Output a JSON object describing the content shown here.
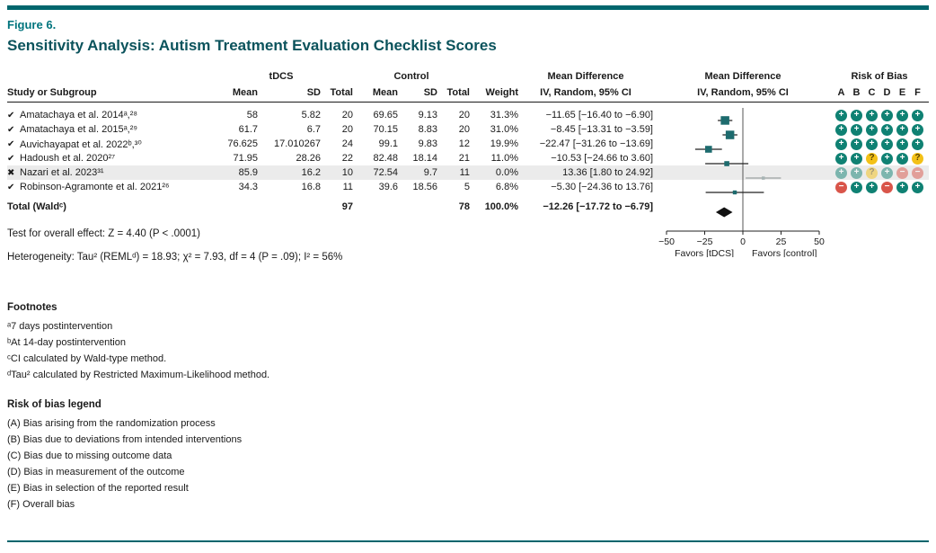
{
  "figure": {
    "label": "Figure 6.",
    "title": "Sensitivity Analysis: Autism Treatment Evaluation Checklist Scores"
  },
  "colors": {
    "accent": "#00666d",
    "figure_label": "#00747d",
    "title": "#0b535c",
    "marker": "#1d6b6e",
    "rob_plus": "#0f8173",
    "rob_question": "#f3c117",
    "rob_minus": "#d9554a",
    "excluded_row_bg": "#ebebeb"
  },
  "table": {
    "group_headers": {
      "tdcs": "tDCS",
      "control": "Control",
      "md1": "Mean Difference",
      "md2": "Mean Difference",
      "rob": "Risk of Bias"
    },
    "col_headers": {
      "study": "Study or Subgroup",
      "mean": "Mean",
      "sd": "SD",
      "total": "Total",
      "mean2": "Mean",
      "sd2": "SD",
      "total2": "Total",
      "weight": "Weight",
      "ci": "IV, Random, 95% CI",
      "ci2": "IV, Random, 95% CI",
      "rob_letters": [
        "A",
        "B",
        "C",
        "D",
        "E",
        "F"
      ]
    },
    "rows": [
      {
        "mark": "✔",
        "excluded": false,
        "study": "Amatachaya et al. 2014ᵃ,²⁸",
        "mean1": "58",
        "sd1": "5.82",
        "total1": "20",
        "mean2": "69.65",
        "sd2": "9.13",
        "total2": "20",
        "weight": "31.3%",
        "md_text": "−11.65 [−16.40 to −6.90]",
        "rob": [
          "plus",
          "plus",
          "plus",
          "plus",
          "plus",
          "plus"
        ]
      },
      {
        "mark": "✔",
        "excluded": false,
        "study": "Amatachaya et al. 2015ᵃ,²⁹",
        "mean1": "61.7",
        "sd1": "6.7",
        "total1": "20",
        "mean2": "70.15",
        "sd2": "8.83",
        "total2": "20",
        "weight": "31.0%",
        "md_text": "−8.45 [−13.31 to −3.59]",
        "rob": [
          "plus",
          "plus",
          "plus",
          "plus",
          "plus",
          "plus"
        ]
      },
      {
        "mark": "✔",
        "excluded": false,
        "study": "Auvichayapat et al. 2022ᵇ,³⁰",
        "mean1": "76.625",
        "sd1": "17.010267",
        "total1": "24",
        "mean2": "99.1",
        "sd2": "9.83",
        "total2": "12",
        "weight": "19.9%",
        "md_text": "−22.47 [−31.26 to −13.69]",
        "rob": [
          "plus",
          "plus",
          "plus",
          "plus",
          "plus",
          "plus"
        ]
      },
      {
        "mark": "✔",
        "excluded": false,
        "study": "Hadoush et al. 2020²⁷",
        "mean1": "71.95",
        "sd1": "28.26",
        "total1": "22",
        "mean2": "82.48",
        "sd2": "18.14",
        "total2": "21",
        "weight": "11.0%",
        "md_text": "−10.53 [−24.66 to 3.60]",
        "rob": [
          "plus",
          "plus",
          "question",
          "plus",
          "plus",
          "question"
        ]
      },
      {
        "mark": "✖",
        "excluded": true,
        "study": "Nazari et al. 2023³¹",
        "mean1": "85.9",
        "sd1": "16.2",
        "total1": "10",
        "mean2": "72.54",
        "sd2": "9.7",
        "total2": "11",
        "weight": "0.0%",
        "md_text": "13.36 [1.80 to 24.92]",
        "rob": [
          "plus",
          "plus",
          "question",
          "plus",
          "minus",
          "minus"
        ]
      },
      {
        "mark": "✔",
        "excluded": false,
        "study": "Robinson-Agramonte et al. 2021²⁶",
        "mean1": "34.3",
        "sd1": "16.8",
        "total1": "11",
        "mean2": "39.6",
        "sd2": "18.56",
        "total2": "5",
        "weight": "6.8%",
        "md_text": "−5.30 [−24.36 to 13.76]",
        "rob": [
          "minus",
          "plus",
          "plus",
          "minus",
          "plus",
          "plus"
        ]
      }
    ],
    "total_row": {
      "label": "Total (Waldᶜ)",
      "total1": "97",
      "total2": "78",
      "weight": "100.0%",
      "md_text": "−12.26 [−17.72 to −6.79]"
    }
  },
  "stats": {
    "overall_effect": "Test for overall effect: Z = 4.40 (P < .0001)",
    "heterogeneity": "Heterogeneity: Tau² (REMLᵈ) = 18.93; χ² = 7.93, df = 4 (P = .09); I² = 56%"
  },
  "chart_data": {
    "type": "forest",
    "title": "Sensitivity Analysis: Autism Treatment Evaluation Checklist Scores",
    "axis": {
      "min": -50,
      "max": 50,
      "ticks": [
        -50,
        -25,
        0,
        25,
        50
      ]
    },
    "favors_left": "Favors [tDCS]",
    "favors_right": "Favors [control]",
    "studies": [
      {
        "label": "Amatachaya et al. 2014",
        "md": -11.65,
        "ci_low": -16.4,
        "ci_high": -6.9,
        "weight": 31.3,
        "excluded": false
      },
      {
        "label": "Amatachaya et al. 2015",
        "md": -8.45,
        "ci_low": -13.31,
        "ci_high": -3.59,
        "weight": 31.0,
        "excluded": false
      },
      {
        "label": "Auvichayapat et al. 2022",
        "md": -22.47,
        "ci_low": -31.26,
        "ci_high": -13.69,
        "weight": 19.9,
        "excluded": false
      },
      {
        "label": "Hadoush et al. 2020",
        "md": -10.53,
        "ci_low": -24.66,
        "ci_high": 3.6,
        "weight": 11.0,
        "excluded": false
      },
      {
        "label": "Nazari et al. 2023",
        "md": 13.36,
        "ci_low": 1.8,
        "ci_high": 24.92,
        "weight": 0.0,
        "excluded": true
      },
      {
        "label": "Robinson-Agramonte et al. 2021",
        "md": -5.3,
        "ci_low": -24.36,
        "ci_high": 13.76,
        "weight": 6.8,
        "excluded": false
      }
    ],
    "total": {
      "label": "Total (Wald)",
      "md": -12.26,
      "ci_low": -17.72,
      "ci_high": -6.79
    }
  },
  "footnotes": {
    "heading": "Footnotes",
    "items": [
      "ᵃ7 days postintervention",
      "ᵇAt 14-day postintervention",
      "ᶜCI calculated by Wald-type method.",
      "ᵈTau² calculated by Restricted Maximum-Likelihood method."
    ]
  },
  "rob_legend": {
    "heading": "Risk of bias legend",
    "items": [
      "(A) Bias arising from the randomization process",
      "(B) Bias due to deviations from intended interventions",
      "(C) Bias due to missing outcome data",
      "(D) Bias in measurement of the outcome",
      "(E) Bias in selection of the reported result",
      "(F) Overall bias"
    ]
  }
}
